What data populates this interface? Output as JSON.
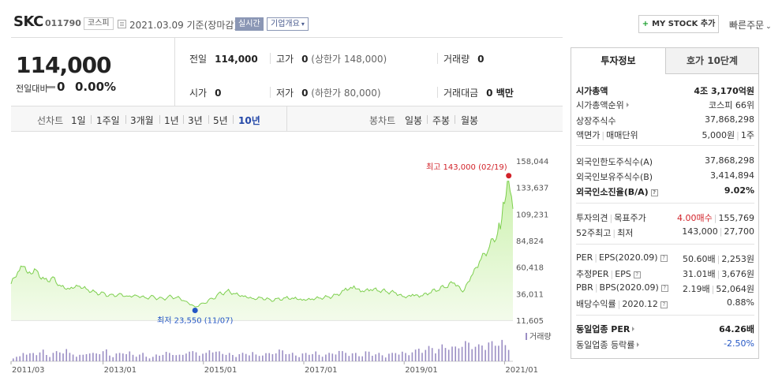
{
  "header": {
    "name": "SKC",
    "code": "011790",
    "market": "코스피",
    "date": "2021.03.09  기준(장마감)",
    "realtime": "실시간",
    "overview": "기업개요",
    "mystock": "MY STOCK 추가",
    "quick_order": "빠른주문"
  },
  "summary": {
    "price": "114,000",
    "change_label": "전일대비",
    "change_value": "0",
    "change_pct": "0.00%",
    "items": [
      {
        "label": "전일",
        "value": "114,000",
        "sub": ""
      },
      {
        "label": "고가",
        "value": "0",
        "sub": "(상한가 148,000)"
      },
      {
        "label": "거래량",
        "value": "0",
        "sub": ""
      },
      {
        "label": "시가",
        "value": "0",
        "sub": ""
      },
      {
        "label": "저가",
        "value": "0",
        "sub": "(하한가 80,000)"
      },
      {
        "label": "거래대금",
        "value": "0 백만",
        "sub": ""
      }
    ]
  },
  "tabs": {
    "line_label": "선차트",
    "line_options": [
      "1일",
      "1주일",
      "3개월",
      "1년",
      "3년",
      "5년",
      "10년"
    ],
    "line_active": "10년",
    "candle_label": "봉차트",
    "candle_options": [
      "일봉",
      "주봉",
      "월봉"
    ]
  },
  "chart_data": {
    "type": "area",
    "x_ticks": [
      "2011/03",
      "2013/01",
      "2015/01",
      "2017/01",
      "2019/01",
      "2021/01"
    ],
    "y_ticks": [
      "158,044",
      "133,637",
      "109,231",
      "84,824",
      "60,418",
      "36,011",
      "11,605"
    ],
    "ylim": [
      11605,
      158044
    ],
    "high_label": "최고 143,000 (02/19)",
    "low_label": "최저 23,550 (11/07)",
    "volume_legend": "거래량",
    "grid": false,
    "price_series": [
      [
        "2011/03",
        45000
      ],
      [
        "2011/05",
        58000
      ],
      [
        "2011/06",
        62000
      ],
      [
        "2011/07",
        55000
      ],
      [
        "2011/09",
        57000
      ],
      [
        "2011/11",
        48000
      ],
      [
        "2012/01",
        50000
      ],
      [
        "2012/03",
        42000
      ],
      [
        "2012/05",
        40000
      ],
      [
        "2012/07",
        43000
      ],
      [
        "2012/09",
        40000
      ],
      [
        "2012/11",
        37000
      ],
      [
        "2013/01",
        36000
      ],
      [
        "2013/03",
        34000
      ],
      [
        "2013/05",
        35000
      ],
      [
        "2013/07",
        33000
      ],
      [
        "2013/09",
        34000
      ],
      [
        "2013/11",
        32000
      ],
      [
        "2014/01",
        33000
      ],
      [
        "2014/03",
        31000
      ],
      [
        "2014/05",
        33000
      ],
      [
        "2014/07",
        32000
      ],
      [
        "2014/09",
        28000
      ],
      [
        "2014/11",
        23550
      ],
      [
        "2015/01",
        27000
      ],
      [
        "2015/03",
        31000
      ],
      [
        "2015/05",
        36000
      ],
      [
        "2015/07",
        38000
      ],
      [
        "2015/09",
        35000
      ],
      [
        "2015/11",
        33000
      ],
      [
        "2016/01",
        31000
      ],
      [
        "2016/03",
        32000
      ],
      [
        "2016/05",
        30000
      ],
      [
        "2016/07",
        31000
      ],
      [
        "2016/09",
        32000
      ],
      [
        "2016/11",
        31500
      ],
      [
        "2017/01",
        30000
      ],
      [
        "2017/03",
        31000
      ],
      [
        "2017/05",
        32000
      ],
      [
        "2017/07",
        33000
      ],
      [
        "2017/09",
        35000
      ],
      [
        "2017/11",
        40000
      ],
      [
        "2018/01",
        42000
      ],
      [
        "2018/03",
        38000
      ],
      [
        "2018/05",
        40000
      ],
      [
        "2018/07",
        39000
      ],
      [
        "2018/09",
        38000
      ],
      [
        "2018/11",
        37000
      ],
      [
        "2019/01",
        33000
      ],
      [
        "2019/03",
        35000
      ],
      [
        "2019/05",
        34000
      ],
      [
        "2019/07",
        37000
      ],
      [
        "2019/09",
        40000
      ],
      [
        "2019/11",
        43000
      ],
      [
        "2020/01",
        47000
      ],
      [
        "2020/03",
        38000
      ],
      [
        "2020/05",
        52000
      ],
      [
        "2020/07",
        66000
      ],
      [
        "2020/09",
        77000
      ],
      [
        "2020/11",
        90000
      ],
      [
        "2020/12",
        100000
      ],
      [
        "2021/01",
        124000
      ],
      [
        "2021/02",
        143000
      ],
      [
        "2021/03",
        114000
      ]
    ],
    "volume_series": [
      3,
      6,
      5,
      7,
      4,
      6,
      8,
      5,
      4,
      6,
      5,
      7,
      4,
      5,
      6,
      4,
      5,
      3,
      4,
      6,
      5,
      4,
      7,
      6,
      5,
      8,
      6,
      5,
      4,
      5,
      6,
      4,
      5,
      6,
      7,
      5,
      4,
      5,
      6,
      4,
      5,
      7,
      6,
      5,
      4,
      6,
      5,
      4,
      5,
      6,
      5,
      7,
      8,
      9,
      8,
      10,
      9,
      11,
      12,
      10,
      11,
      12,
      13,
      10
    ]
  },
  "right_panel": {
    "tab_active": "투자정보",
    "tab_other": "호가 10단계",
    "group1": [
      {
        "k": "시가총액",
        "v": "4조 3,170억원"
      },
      {
        "k": "시가총액순위",
        "v": "코스피 66위"
      },
      {
        "k": "상장주식수",
        "v": "37,868,298"
      },
      {
        "k": "액면가",
        "k2": "매매단위",
        "v": "5,000원",
        "v2": "1주"
      }
    ],
    "group2": [
      {
        "k": "외국인한도주식수(A)",
        "v": "37,868,298"
      },
      {
        "k": "외국인보유주식수(B)",
        "v": "3,414,894"
      },
      {
        "k": "외국인소진율(B/A)",
        "v": "9.02%"
      }
    ],
    "group3": [
      {
        "k": "투자의견",
        "k2": "목표주가",
        "v": "4.00매수",
        "v2": "155,769"
      },
      {
        "k": "52주최고",
        "k2": "최저",
        "v": "143,000",
        "v2": "27,700"
      }
    ],
    "group4": [
      {
        "k": "PER",
        "k2": "EPS(2020.09)",
        "v": "50.60배",
        "v2": "2,253원"
      },
      {
        "k": "추정PER",
        "k2": "EPS",
        "v": "31.01배",
        "v2": "3,676원"
      },
      {
        "k": "PBR",
        "k2": "BPS(2020.09)",
        "v": "2.19배",
        "v2": "52,064원"
      },
      {
        "k": "배당수익률",
        "k2": "2020.12",
        "v": "0.88%"
      }
    ],
    "group5": [
      {
        "k": "동일업종 PER",
        "v": "64.26배"
      },
      {
        "k": "동일업종 등락률",
        "v": "-2.50%"
      }
    ]
  },
  "colors": {
    "accent_blue": "#2448a8",
    "up_red": "#d2232a",
    "down_blue": "#2457c5",
    "chart_line": "#7dcf4e",
    "volume": "#9b8ec4"
  }
}
